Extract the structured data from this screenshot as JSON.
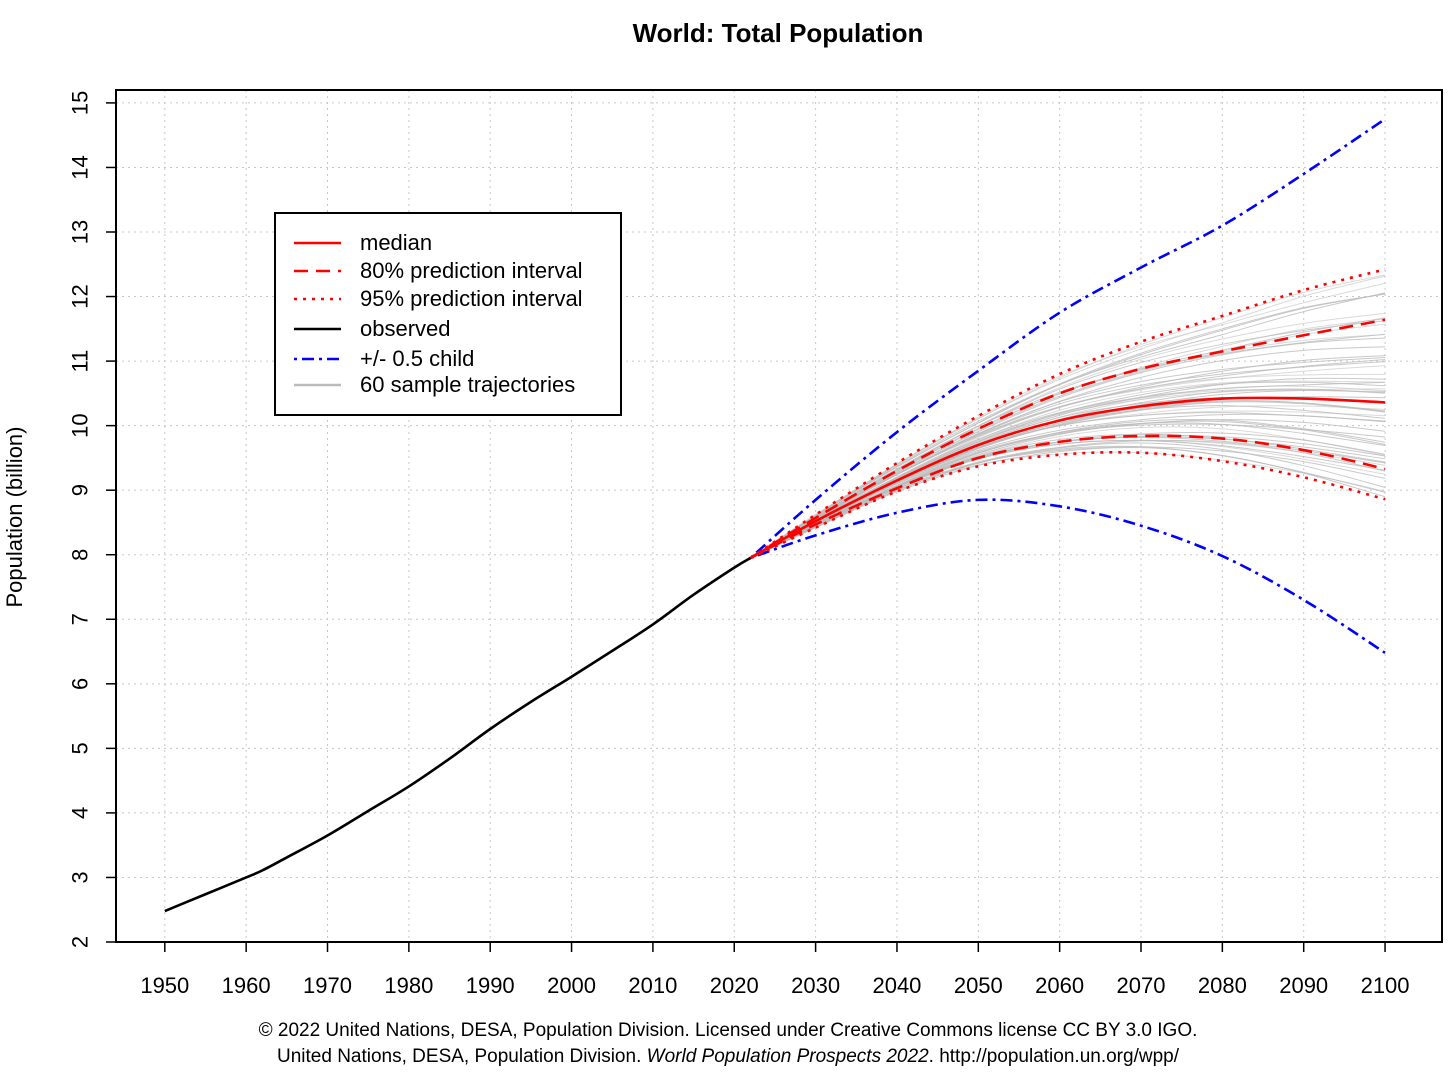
{
  "chart_data": {
    "type": "line",
    "title": "World: Total Population",
    "xlabel": "",
    "ylabel": "Population (billion)",
    "xlim": [
      1944,
      2107
    ],
    "ylim": [
      2,
      15.2
    ],
    "xticks": [
      1950,
      1960,
      1970,
      1980,
      1990,
      2000,
      2010,
      2020,
      2030,
      2040,
      2050,
      2060,
      2070,
      2080,
      2090,
      2100
    ],
    "yticks": [
      2,
      3,
      4,
      5,
      6,
      7,
      8,
      9,
      10,
      11,
      12,
      13,
      14,
      15
    ],
    "grid": true,
    "legend_position": "top-left",
    "legend": [
      {
        "label": "median",
        "color": "#ff0000",
        "dash": "solid"
      },
      {
        "label": "80% prediction interval",
        "color": "#ff0000",
        "dash": "dashed"
      },
      {
        "label": "95% prediction interval",
        "color": "#ff0000",
        "dash": "dotted"
      },
      {
        "label": "observed",
        "color": "#000000",
        "dash": "solid"
      },
      {
        "label": "+/- 0.5 child",
        "color": "#0000ff",
        "dash": "dotdash"
      },
      {
        "label": "60 sample trajectories",
        "color": "#bbbbbb",
        "dash": "solid"
      }
    ],
    "series": [
      {
        "name": "observed",
        "color": "#000000",
        "dash": "solid",
        "x": [
          1950,
          1955,
          1960,
          1962,
          1965,
          1970,
          1975,
          1980,
          1985,
          1990,
          1995,
          2000,
          2005,
          2010,
          2015,
          2020,
          2022
        ],
        "y": [
          2.48,
          2.74,
          3.0,
          3.11,
          3.31,
          3.65,
          4.03,
          4.41,
          4.84,
          5.3,
          5.72,
          6.11,
          6.51,
          6.92,
          7.38,
          7.8,
          7.95
        ]
      },
      {
        "name": "median",
        "color": "#ff0000",
        "dash": "solid",
        "x": [
          2022,
          2030,
          2040,
          2050,
          2060,
          2070,
          2080,
          2090,
          2100
        ],
        "y": [
          7.95,
          8.52,
          9.15,
          9.7,
          10.08,
          10.3,
          10.42,
          10.42,
          10.36
        ]
      },
      {
        "name": "80% upper",
        "color": "#ff0000",
        "dash": "dashed",
        "x": [
          2022,
          2030,
          2040,
          2050,
          2060,
          2070,
          2080,
          2090,
          2100
        ],
        "y": [
          7.95,
          8.57,
          9.3,
          9.95,
          10.5,
          10.88,
          11.15,
          11.4,
          11.64
        ]
      },
      {
        "name": "80% lower",
        "color": "#ff0000",
        "dash": "dashed",
        "x": [
          2022,
          2030,
          2040,
          2050,
          2060,
          2070,
          2080,
          2090,
          2100
        ],
        "y": [
          7.95,
          8.47,
          9.03,
          9.5,
          9.75,
          9.84,
          9.8,
          9.62,
          9.33
        ]
      },
      {
        "name": "95% upper",
        "color": "#ff0000",
        "dash": "dotted",
        "x": [
          2022,
          2030,
          2040,
          2050,
          2060,
          2070,
          2080,
          2090,
          2100
        ],
        "y": [
          7.95,
          8.62,
          9.42,
          10.15,
          10.8,
          11.3,
          11.7,
          12.1,
          12.42
        ]
      },
      {
        "name": "95% lower",
        "color": "#ff0000",
        "dash": "dotted",
        "x": [
          2022,
          2030,
          2040,
          2050,
          2060,
          2070,
          2080,
          2090,
          2100
        ],
        "y": [
          7.95,
          8.42,
          8.98,
          9.37,
          9.55,
          9.58,
          9.45,
          9.2,
          8.86
        ]
      },
      {
        "name": "+0.5 child",
        "color": "#0000ff",
        "dash": "dotdash",
        "x": [
          2022,
          2030,
          2040,
          2050,
          2060,
          2070,
          2080,
          2090,
          2100
        ],
        "y": [
          7.95,
          8.85,
          9.9,
          10.85,
          11.75,
          12.45,
          13.1,
          13.9,
          14.75
        ]
      },
      {
        "name": "-0.5 child",
        "color": "#0000ff",
        "dash": "dotdash",
        "x": [
          2022,
          2030,
          2040,
          2050,
          2060,
          2070,
          2080,
          2090,
          2100
        ],
        "y": [
          7.95,
          8.3,
          8.65,
          8.85,
          8.75,
          8.45,
          7.98,
          7.3,
          6.48
        ]
      }
    ],
    "sample_trajectories": {
      "name": "60 sample trajectories",
      "color": "#bbbbbb",
      "count": 60,
      "x": [
        2022,
        2030,
        2040,
        2050,
        2060,
        2070,
        2080,
        2090,
        2100
      ],
      "y_2100_range": [
        9.1,
        12.1
      ]
    }
  },
  "footer": {
    "line1": "© 2022 United Nations, DESA, Population Division. Licensed under Creative Commons license CC BY 3.0 IGO.",
    "line2_pre": "United Nations, DESA, Population Division.",
    "line2_italic": "World Population Prospects 2022",
    "line2_post": ". http://population.un.org/wpp/"
  }
}
